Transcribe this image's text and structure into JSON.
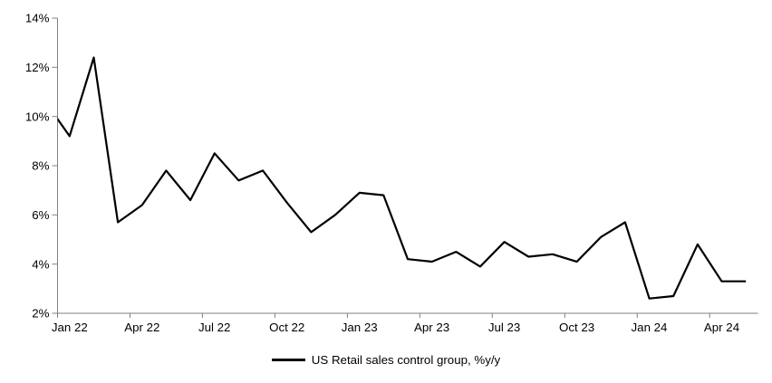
{
  "chart_data": {
    "type": "line",
    "title": "",
    "legend_label": "US Retail sales control group, %y/y",
    "legend_position": "bottom-center",
    "grid": false,
    "ylim": [
      2,
      14
    ],
    "y_ticks": [
      14,
      12,
      10,
      8,
      6,
      4,
      2
    ],
    "y_tick_suffix": "%",
    "x_tick_labels": [
      "Jan 22",
      "Apr 22",
      "Jul 22",
      "Oct 22",
      "Jan 23",
      "Apr 23",
      "Jul 23",
      "Oct 23",
      "Jan 24",
      "Apr 24"
    ],
    "x_tick_every_n_categories": 3,
    "categories": [
      "Jan 22",
      "Feb 22",
      "Mar 22",
      "Apr 22",
      "May 22",
      "Jun 22",
      "Jul 22",
      "Aug 22",
      "Sep 22",
      "Oct 22",
      "Nov 22",
      "Dec 22",
      "Jan 23",
      "Feb 23",
      "Mar 23",
      "Apr 23",
      "May 23",
      "Jun 23",
      "Jul 23",
      "Aug 23",
      "Sep 23",
      "Oct 23",
      "Nov 23",
      "Dec 23",
      "Jan 24",
      "Feb 24",
      "Mar 24",
      "Apr 24",
      "May 24"
    ],
    "series": [
      {
        "name": "US Retail sales control group, %y/y",
        "values": [
          9.2,
          12.4,
          5.7,
          6.4,
          7.8,
          6.6,
          8.5,
          7.4,
          7.8,
          6.5,
          5.3,
          6.0,
          6.9,
          6.8,
          4.2,
          4.1,
          4.5,
          3.9,
          4.9,
          4.3,
          4.4,
          4.1,
          5.1,
          5.7,
          2.6,
          2.7,
          4.8,
          3.3,
          3.3
        ],
        "clipped_lead_in": {
          "category": "Dec 21",
          "value": 10.6
        }
      }
    ],
    "colors": {
      "line": "#000000",
      "axis": "#808080",
      "text": "#000000",
      "background": "#ffffff"
    }
  }
}
